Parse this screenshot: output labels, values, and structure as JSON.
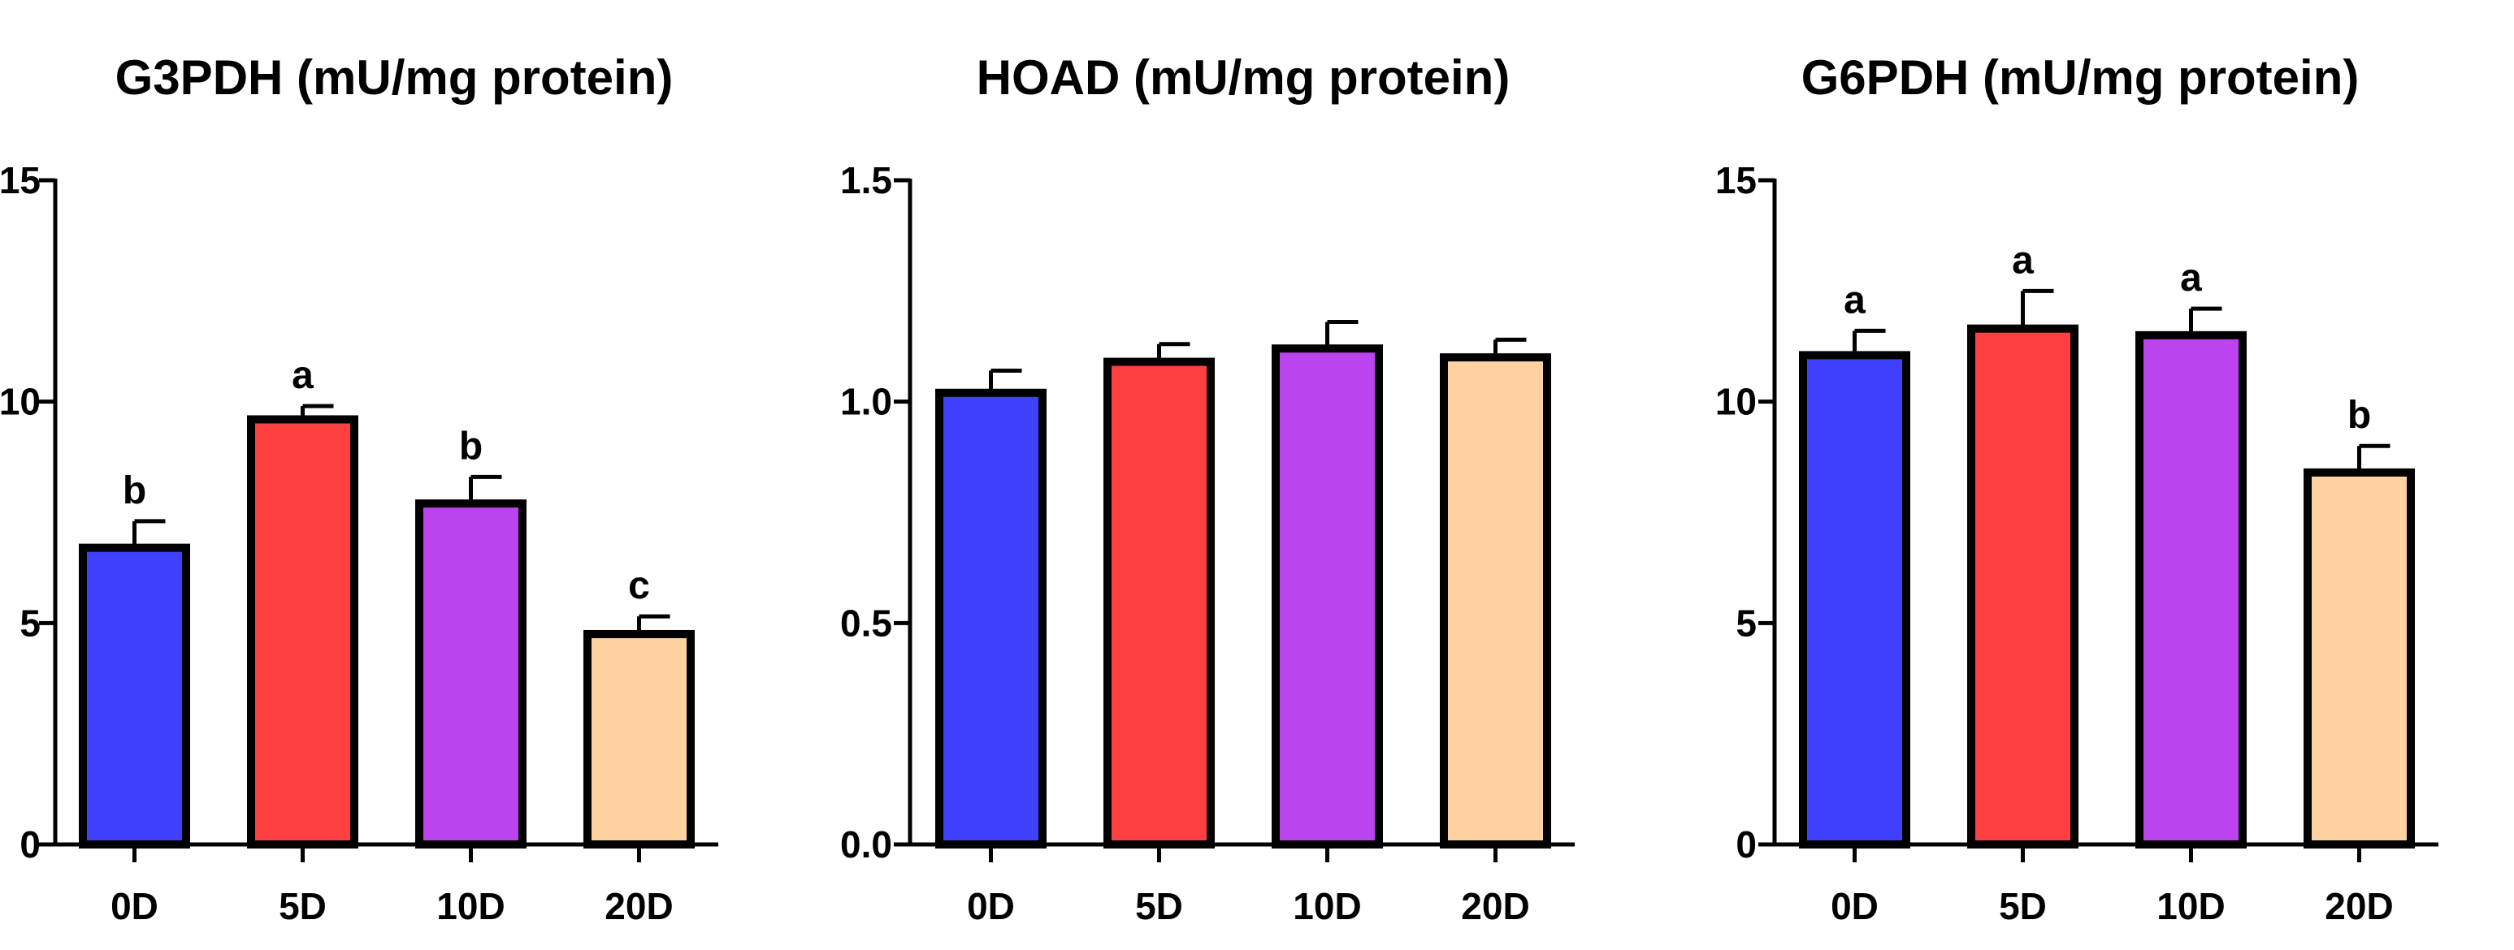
{
  "chart_data": [
    {
      "type": "bar",
      "title": "G3PDH (mU/mg protein)",
      "categories": [
        "0D",
        "5D",
        "10D",
        "20D"
      ],
      "values": [
        6.7,
        9.6,
        7.7,
        4.75
      ],
      "errors": [
        0.6,
        0.3,
        0.6,
        0.4
      ],
      "significance": [
        "b",
        "a",
        "b",
        "c"
      ],
      "ylim": [
        0,
        15
      ],
      "yticks": [
        0,
        5,
        10,
        15
      ],
      "ytick_labels": [
        "0",
        "5",
        "10",
        "15"
      ],
      "grid": false
    },
    {
      "type": "bar",
      "title": "HOAD (mU/mg protein)",
      "categories": [
        "0D",
        "5D",
        "10D",
        "20D"
      ],
      "values": [
        1.02,
        1.09,
        1.12,
        1.1
      ],
      "errors": [
        0.05,
        0.04,
        0.06,
        0.04
      ],
      "significance": [
        "",
        "",
        "",
        ""
      ],
      "ylim": [
        0,
        1.5
      ],
      "yticks": [
        0,
        0.5,
        1.0,
        1.5
      ],
      "ytick_labels": [
        "0.0",
        "0.5",
        "1.0",
        "1.5"
      ],
      "grid": false
    },
    {
      "type": "bar",
      "title": "G6PDH (mU/mg protein)",
      "categories": [
        "0D",
        "5D",
        "10D",
        "20D"
      ],
      "values": [
        11.05,
        11.65,
        11.5,
        8.4
      ],
      "errors": [
        0.55,
        0.85,
        0.6,
        0.6
      ],
      "significance": [
        "a",
        "a",
        "a",
        "b"
      ],
      "ylim": [
        0,
        15
      ],
      "yticks": [
        0,
        5,
        10,
        15
      ],
      "ytick_labels": [
        "0",
        "5",
        "10",
        "15"
      ],
      "grid": false
    }
  ],
  "colors": {
    "bars": [
      "#4040ff",
      "#ff4040",
      "#bb44ee",
      "#ffd2a0"
    ],
    "outline": "#000000"
  }
}
